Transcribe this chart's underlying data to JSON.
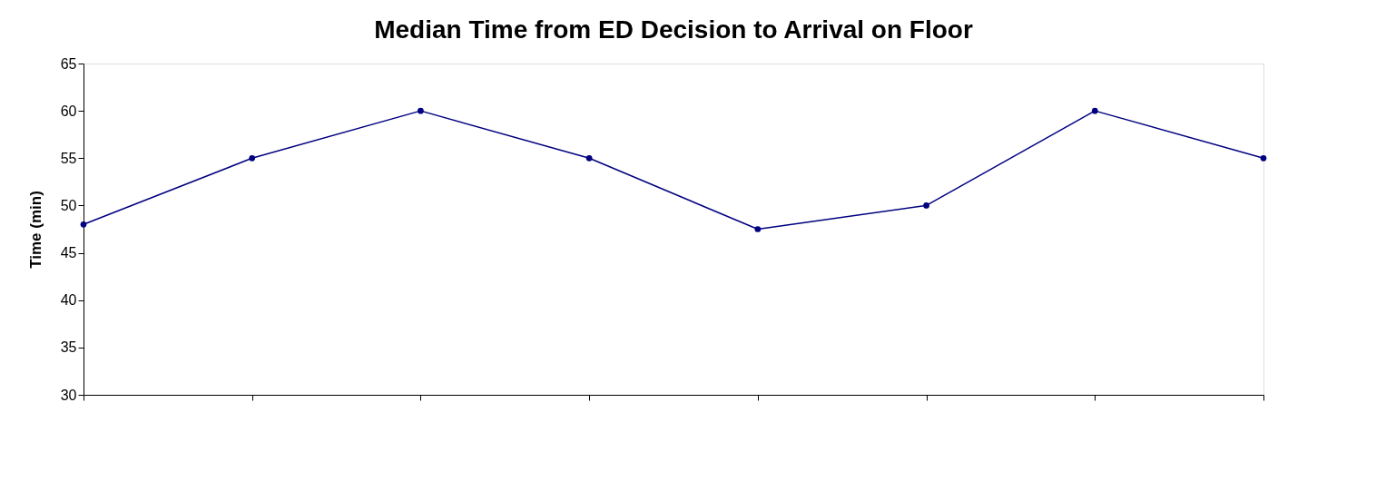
{
  "chart_data": {
    "type": "line",
    "title": "Median Time from ED Decision to Arrival on Floor",
    "ylabel": "Time (min)",
    "categories": [
      null,
      null,
      null,
      null,
      null,
      null,
      null,
      null
    ],
    "series": [
      {
        "color": "#000080",
        "values": [
          48,
          55,
          60,
          55,
          47.5,
          50,
          60,
          55
        ]
      }
    ],
    "ylim": [
      30,
      65
    ],
    "yticks": [
      30,
      35,
      40,
      45,
      50,
      55,
      60,
      65
    ],
    "grid": false,
    "marker": "circle",
    "line_style": "solid"
  }
}
